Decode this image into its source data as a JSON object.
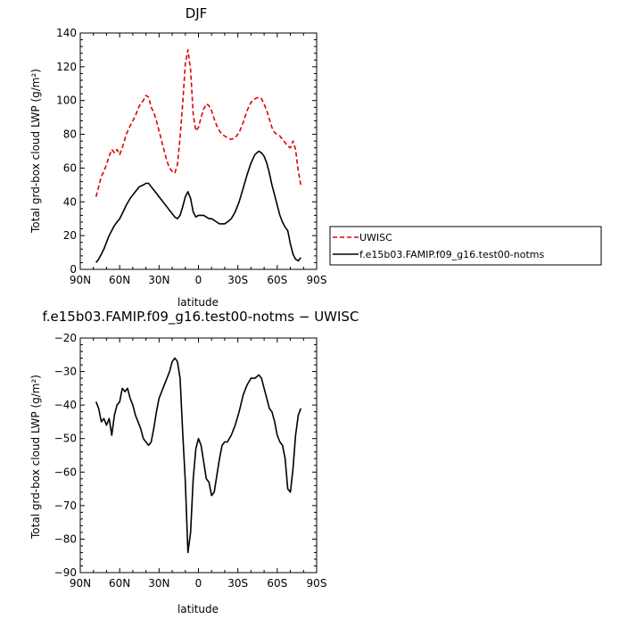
{
  "chart_data": [
    {
      "type": "line",
      "title": "DJF",
      "xlabel": "latitude",
      "ylabel": "Total grd-box cloud LWP (g/m²)",
      "xlim": [
        90,
        -90
      ],
      "ylim": [
        0,
        140
      ],
      "xticks": [
        90,
        60,
        30,
        0,
        -30,
        -60,
        -90
      ],
      "xtick_labels": [
        "90N",
        "60N",
        "30N",
        "0",
        "30S",
        "60S",
        "90S"
      ],
      "yticks": [
        0,
        20,
        40,
        60,
        80,
        100,
        120,
        140
      ],
      "ytick_labels": [
        "0",
        "20",
        "40",
        "60",
        "80",
        "100",
        "120",
        "140"
      ],
      "legend": "outside-right",
      "grid": false,
      "series": [
        {
          "name": "UWISC",
          "color": "#e00000",
          "dash": "dashed",
          "x": [
            78,
            76,
            74,
            72,
            70,
            68,
            66,
            64,
            62,
            60,
            58,
            55,
            52,
            48,
            45,
            42,
            40,
            38,
            36,
            34,
            32,
            30,
            28,
            26,
            24,
            22,
            20,
            18,
            16,
            14,
            12,
            10,
            8,
            6,
            4,
            2,
            0,
            -2,
            -4,
            -6,
            -8,
            -10,
            -12,
            -14,
            -16,
            -18,
            -20,
            -22,
            -25,
            -28,
            -31,
            -34,
            -37,
            -40,
            -43,
            -46,
            -48,
            -50,
            -52,
            -54,
            -56,
            -58,
            -60,
            -62,
            -64,
            -66,
            -68,
            -70,
            -72,
            -74,
            -76,
            -78
          ],
          "y": [
            43,
            49,
            55,
            58,
            62,
            67,
            71,
            69,
            71,
            68,
            72,
            80,
            85,
            91,
            97,
            100,
            103,
            102,
            96,
            93,
            88,
            82,
            76,
            70,
            64,
            60,
            58,
            57,
            62,
            78,
            98,
            122,
            130,
            118,
            92,
            82,
            84,
            90,
            95,
            98,
            97,
            94,
            89,
            85,
            82,
            80,
            79,
            78,
            77,
            78,
            81,
            87,
            94,
            99,
            101,
            102,
            101,
            98,
            94,
            89,
            84,
            81,
            80,
            79,
            77,
            75,
            73,
            72,
            76,
            71,
            58,
            50
          ]
        },
        {
          "name": "f.e15b03.FAMIP.f09_g16.test00-notms",
          "color": "#000000",
          "dash": "solid",
          "x": [
            78,
            76,
            74,
            72,
            70,
            68,
            66,
            64,
            62,
            60,
            58,
            55,
            52,
            48,
            45,
            42,
            40,
            38,
            36,
            34,
            32,
            30,
            28,
            26,
            24,
            22,
            20,
            18,
            16,
            14,
            12,
            10,
            8,
            6,
            4,
            2,
            0,
            -2,
            -4,
            -6,
            -8,
            -10,
            -12,
            -14,
            -16,
            -18,
            -20,
            -22,
            -25,
            -28,
            -31,
            -34,
            -37,
            -40,
            -43,
            -46,
            -48,
            -50,
            -52,
            -54,
            -56,
            -58,
            -60,
            -62,
            -64,
            -66,
            -68,
            -70,
            -72,
            -74,
            -76,
            -78
          ],
          "y": [
            4,
            6,
            9,
            12,
            16,
            20,
            23,
            26,
            28,
            30,
            33,
            38,
            42,
            46,
            49,
            50,
            51,
            51,
            49,
            47,
            45,
            43,
            41,
            39,
            37,
            35,
            33,
            31,
            30,
            32,
            37,
            43,
            46,
            42,
            34,
            31,
            32,
            32,
            32,
            31,
            30,
            30,
            29,
            28,
            27,
            27,
            27,
            28,
            30,
            34,
            40,
            48,
            56,
            63,
            68,
            70,
            69,
            67,
            63,
            57,
            50,
            44,
            38,
            32,
            28,
            25,
            23,
            15,
            9,
            6,
            5,
            7
          ]
        }
      ]
    },
    {
      "type": "line",
      "title": "f.e15b03.FAMIP.f09_g16.test00-notms − UWISC",
      "xlabel": "latitude",
      "ylabel": "Total grd-box cloud LWP (g/m²)",
      "xlim": [
        90,
        -90
      ],
      "ylim": [
        -90,
        -20
      ],
      "xticks": [
        90,
        60,
        30,
        0,
        -30,
        -60,
        -90
      ],
      "xtick_labels": [
        "90N",
        "60N",
        "30N",
        "0",
        "30S",
        "60S",
        "90S"
      ],
      "yticks": [
        -90,
        -80,
        -70,
        -60,
        -50,
        -40,
        -30,
        -20
      ],
      "ytick_labels": [
        "−90",
        "−80",
        "−70",
        "−60",
        "−50",
        "−40",
        "−30",
        "−20"
      ],
      "grid": false,
      "series": [
        {
          "color": "#000000",
          "dash": "solid",
          "x": [
            78,
            76,
            74,
            72,
            70,
            68,
            66,
            64,
            62,
            60,
            58,
            56,
            54,
            52,
            50,
            48,
            46,
            44,
            42,
            40,
            38,
            36,
            34,
            32,
            30,
            28,
            26,
            24,
            22,
            20,
            18,
            16,
            14,
            12,
            10,
            8,
            6,
            4,
            2,
            0,
            -2,
            -4,
            -6,
            -8,
            -10,
            -12,
            -14,
            -16,
            -18,
            -20,
            -22,
            -25,
            -28,
            -31,
            -34,
            -37,
            -40,
            -43,
            -46,
            -48,
            -50,
            -52,
            -54,
            -56,
            -58,
            -60,
            -62,
            -64,
            -66,
            -68,
            -70,
            -72,
            -74,
            -76,
            -78
          ],
          "y": [
            -39,
            -41,
            -45,
            -44,
            -46,
            -44,
            -49,
            -43,
            -40,
            -39,
            -35,
            -36,
            -35,
            -38,
            -40,
            -43,
            -45,
            -47,
            -50,
            -51,
            -52,
            -51,
            -47,
            -42,
            -38,
            -36,
            -34,
            -32,
            -30,
            -27,
            -26,
            -27,
            -32,
            -48,
            -63,
            -84,
            -78,
            -62,
            -53,
            -50,
            -52,
            -57,
            -62,
            -63,
            -67,
            -66,
            -61,
            -56,
            -52,
            -51,
            -51,
            -49,
            -46,
            -42,
            -37,
            -34,
            -32,
            -32,
            -31,
            -32,
            -35,
            -38,
            -41,
            -42,
            -45,
            -49,
            -51,
            -52,
            -56,
            -65,
            -66,
            -59,
            -49,
            -43,
            -41
          ]
        }
      ]
    }
  ]
}
